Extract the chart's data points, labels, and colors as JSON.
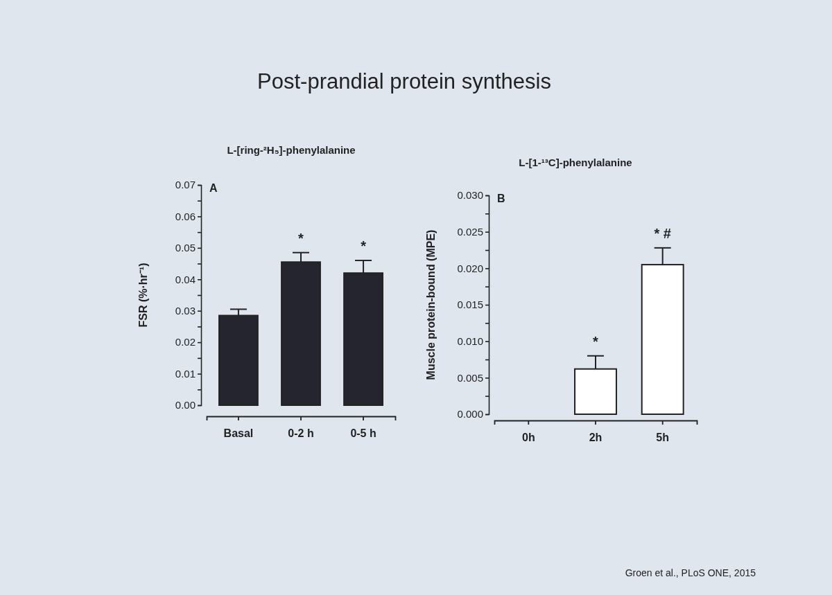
{
  "chart_data": [
    {
      "type": "bar",
      "title": "Post-prandial protein synthesis",
      "subtitle": "L-[ring-²H₅]-phenylalanine",
      "ylabel": "FSR (%·hr⁻¹)",
      "categories": [
        "Basal",
        "0-2 h",
        "0-5 h"
      ],
      "series": [
        {
          "color": "#25252f",
          "values": [
            0.0285,
            0.0455,
            0.042
          ],
          "errors": [
            0.002,
            0.003,
            0.004
          ]
        }
      ],
      "ylim": [
        0,
        0.07
      ],
      "yticks": [
        {
          "value": 0,
          "label": "0.00"
        },
        {
          "value": 0.005,
          "label": null
        },
        0.01,
        {
          "value": 0.015,
          "label": null
        },
        0.02,
        {
          "value": 0.025,
          "label": null
        },
        0.03,
        {
          "value": 0.035,
          "label": null
        },
        0.04,
        {
          "value": 0.045,
          "label": null
        },
        0.05,
        {
          "value": 0.055,
          "label": null
        },
        0.06,
        {
          "value": 0.065,
          "label": null
        },
        0.07
      ],
      "annotations": [
        "A",
        "*",
        "*"
      ]
    },
    {
      "type": "bar",
      "subtitle": "L-[1-¹³C]-phenylalanine",
      "ylabel": "Muscle protein-bound (MPE)",
      "categories": [
        "0h",
        "2h",
        "5h"
      ],
      "series": [
        {
          "color": "#ffffff",
          "values": [
            0,
            0.0062,
            0.0205
          ],
          "errors": [
            null,
            0.0018,
            0.0023
          ]
        }
      ],
      "ylim": [
        0,
        0.03
      ],
      "yticks": [
        {
          "value": 0,
          "label": "0.000"
        },
        {
          "value": 0.0025,
          "label": null
        },
        {
          "value": 0.005,
          "label": "0.005"
        },
        {
          "value": 0.0075,
          "label": null
        },
        {
          "value": 0.01,
          "label": "0.010"
        },
        {
          "value": 0.0125,
          "label": null
        },
        {
          "value": 0.015,
          "label": "0.015"
        },
        {
          "value": 0.0175,
          "label": null
        },
        {
          "value": 0.02,
          "label": "0.020"
        },
        {
          "value": 0.0225,
          "label": null
        },
        {
          "value": 0.025,
          "label": "0.025"
        },
        {
          "value": 0.0275,
          "label": null
        },
        {
          "value": 0.03,
          "label": "0.030"
        }
      ],
      "annotations": [
        "B",
        "*",
        "* #",
        "Groen et al., PLoS ONE, 2015"
      ]
    }
  ]
}
